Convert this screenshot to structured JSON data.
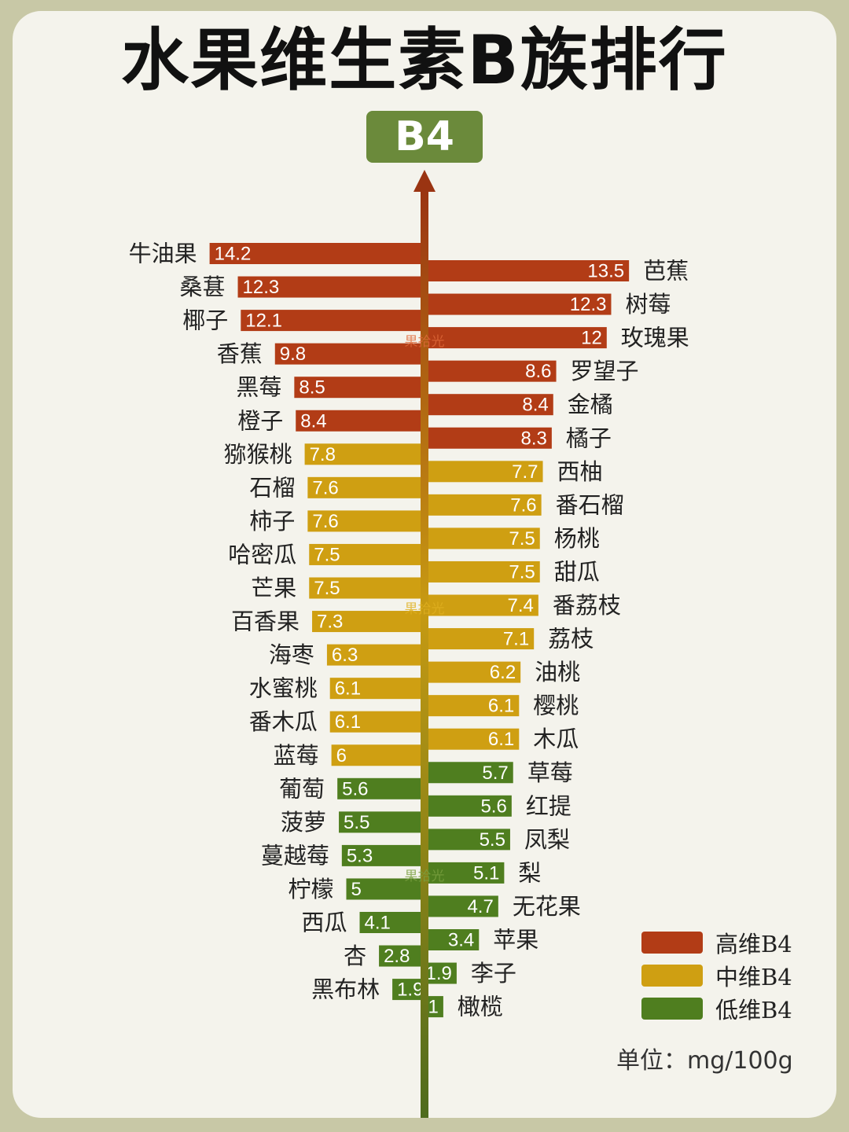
{
  "title": "水果维生素B族排行",
  "badge": "B4",
  "unit_label": "单位：mg/100g",
  "watermark": "果拾光",
  "colors": {
    "high": "#b23c16",
    "mid": "#cf9f12",
    "low": "#4f7e1f"
  },
  "legend": [
    {
      "label": "高维B4",
      "level": "high"
    },
    {
      "label": "中维B4",
      "level": "mid"
    },
    {
      "label": "低维B4",
      "level": "low"
    }
  ],
  "chart_data": {
    "type": "bar",
    "title": "水果维生素B族排行",
    "unit": "mg/100g",
    "left": [
      {
        "name": "牛油果",
        "value": 14.2,
        "level": "high"
      },
      {
        "name": "桑葚",
        "value": 12.3,
        "level": "high"
      },
      {
        "name": "椰子",
        "value": 12.1,
        "level": "high"
      },
      {
        "name": "香蕉",
        "value": 9.8,
        "level": "high"
      },
      {
        "name": "黑莓",
        "value": 8.5,
        "level": "high"
      },
      {
        "name": "橙子",
        "value": 8.4,
        "level": "high"
      },
      {
        "name": "猕猴桃",
        "value": 7.8,
        "level": "mid"
      },
      {
        "name": "石榴",
        "value": 7.6,
        "level": "mid"
      },
      {
        "name": "柿子",
        "value": 7.6,
        "level": "mid"
      },
      {
        "name": "哈密瓜",
        "value": 7.5,
        "level": "mid"
      },
      {
        "name": "芒果",
        "value": 7.5,
        "level": "mid"
      },
      {
        "name": "百香果",
        "value": 7.3,
        "level": "mid"
      },
      {
        "name": "海枣",
        "value": 6.3,
        "level": "mid"
      },
      {
        "name": "水蜜桃",
        "value": 6.1,
        "level": "mid"
      },
      {
        "name": "番木瓜",
        "value": 6.1,
        "level": "mid"
      },
      {
        "name": "蓝莓",
        "value": 6,
        "level": "mid"
      },
      {
        "name": "葡萄",
        "value": 5.6,
        "level": "low"
      },
      {
        "name": "菠萝",
        "value": 5.5,
        "level": "low"
      },
      {
        "name": "蔓越莓",
        "value": 5.3,
        "level": "low"
      },
      {
        "name": "柠檬",
        "value": 5,
        "level": "low"
      },
      {
        "name": "西瓜",
        "value": 4.1,
        "level": "low"
      },
      {
        "name": "杏",
        "value": 2.8,
        "level": "low"
      },
      {
        "name": "黑布林",
        "value": 1.9,
        "level": "low"
      }
    ],
    "right": [
      {
        "name": "芭蕉",
        "value": 13.5,
        "level": "high"
      },
      {
        "name": "树莓",
        "value": 12.3,
        "level": "high"
      },
      {
        "name": "玫瑰果",
        "value": 12,
        "level": "high"
      },
      {
        "name": "罗望子",
        "value": 8.6,
        "level": "high"
      },
      {
        "name": "金橘",
        "value": 8.4,
        "level": "high"
      },
      {
        "name": "橘子",
        "value": 8.3,
        "level": "high"
      },
      {
        "name": "西柚",
        "value": 7.7,
        "level": "mid"
      },
      {
        "name": "番石榴",
        "value": 7.6,
        "level": "mid"
      },
      {
        "name": "杨桃",
        "value": 7.5,
        "level": "mid"
      },
      {
        "name": "甜瓜",
        "value": 7.5,
        "level": "mid"
      },
      {
        "name": "番荔枝",
        "value": 7.4,
        "level": "mid"
      },
      {
        "name": "荔枝",
        "value": 7.1,
        "level": "mid"
      },
      {
        "name": "油桃",
        "value": 6.2,
        "level": "mid"
      },
      {
        "name": "樱桃",
        "value": 6.1,
        "level": "mid"
      },
      {
        "name": "木瓜",
        "value": 6.1,
        "level": "mid"
      },
      {
        "name": "草莓",
        "value": 5.7,
        "level": "low"
      },
      {
        "name": "红提",
        "value": 5.6,
        "level": "low"
      },
      {
        "name": "凤梨",
        "value": 5.5,
        "level": "low"
      },
      {
        "name": "梨",
        "value": 5.1,
        "level": "low"
      },
      {
        "name": "无花果",
        "value": 4.7,
        "level": "low"
      },
      {
        "name": "苹果",
        "value": 3.4,
        "level": "low"
      },
      {
        "name": "李子",
        "value": 1.9,
        "level": "low"
      },
      {
        "name": "橄榄",
        "value": 1,
        "level": "low"
      }
    ]
  }
}
